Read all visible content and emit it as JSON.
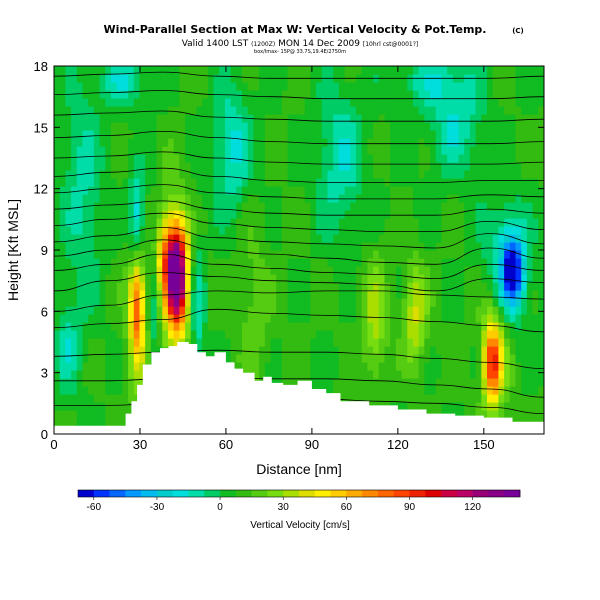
{
  "chart_data": {
    "type": "heatmap",
    "title_main": "Wind-Parallel Section at Max W: Vertical Velocity & Pot.Temp.",
    "title_mark": "(C)",
    "subtitle_valid": "Valid 1400 LST",
    "subtitle_utc": "(1200Z)",
    "subtitle_date": "MON 14 Dec 2009",
    "subtitle_run": "[10hrl cst@0001?]",
    "subtitle_small": "box/Imax- 15P@ 33.7S,19.4E/2750m",
    "xlabel": "Distance [nm]",
    "ylabel": "Height [Kft MSL]",
    "xlim": [
      0,
      171
    ],
    "ylim": [
      0,
      18
    ],
    "x_ticks": [
      "0",
      "30",
      "60",
      "90",
      "120",
      "150"
    ],
    "x_tick_values": [
      0,
      30,
      60,
      90,
      120,
      150
    ],
    "y_ticks": [
      "0",
      "3",
      "6",
      "9",
      "12",
      "15",
      "18"
    ],
    "y_tick_values": [
      0,
      3,
      6,
      9,
      12,
      15,
      18
    ],
    "colorbar_label": "Vertical Velocity [cm/s]",
    "colorbar_ticks": [
      "-60",
      "-30",
      "0",
      "30",
      "60",
      "90",
      "120"
    ],
    "colorbar_tick_values": [
      -60,
      -30,
      0,
      30,
      60,
      90,
      120
    ],
    "colorbar_range": [
      -67.5,
      142.5
    ],
    "colorbar_step": 7.5,
    "colors": {
      "bins": [
        "#0000cc",
        "#0033ff",
        "#0066ff",
        "#0099ff",
        "#00bbee",
        "#00cccc",
        "#00dddd",
        "#00dda8",
        "#00cc66",
        "#11bb22",
        "#33bb11",
        "#55cc11",
        "#77dd11",
        "#aadd00",
        "#dddd00",
        "#ffee00",
        "#ffcc00",
        "#ffaa00",
        "#ff8800",
        "#ff6600",
        "#ff4400",
        "#ee2200",
        "#dd0000",
        "#cc0044",
        "#bb0066",
        "#990077",
        "#880088",
        "#770099"
      ],
      "field_base": "#2db82d",
      "terrain": "#ffffff",
      "contour": "#000000"
    },
    "terrain_height_kft": [
      0.4,
      0.4,
      0.4,
      1.0,
      1.6,
      2.4,
      3.4,
      4.0,
      4.2,
      4.3,
      4.5,
      4.4,
      4.0,
      3.8,
      4.0,
      3.5,
      3.2,
      3.0,
      2.6,
      2.8,
      2.5,
      2.4,
      2.6,
      2.2,
      2.0,
      1.6,
      1.4,
      1.2,
      1.0,
      0.9,
      0.8,
      0.6,
      0.6
    ],
    "terrain_x_nm": [
      0,
      20,
      22,
      25,
      27,
      29,
      31,
      34,
      37,
      40,
      43,
      47,
      50,
      53,
      56,
      60,
      63,
      66,
      70,
      73,
      76,
      80,
      85,
      90,
      95,
      100,
      110,
      120,
      130,
      140,
      150,
      160,
      171
    ],
    "cells": [
      {
        "name": "updraft-main-core",
        "x": 43,
        "y": 7.6,
        "sx": 2.2,
        "sy": 1.6,
        "w": 105
      },
      {
        "name": "updraft-main-mid",
        "x": 40,
        "y": 8.6,
        "sx": 3.5,
        "sy": 1.5,
        "w": 50
      },
      {
        "name": "updraft-main-outer",
        "x": 42,
        "y": 7.2,
        "sx": 5.5,
        "sy": 3.0,
        "w": 30
      },
      {
        "name": "updraft-left",
        "x": 29,
        "y": 6.2,
        "sx": 1.6,
        "sy": 1.6,
        "w": 55
      },
      {
        "name": "updraft-left-outer",
        "x": 29,
        "y": 5.5,
        "sx": 3.0,
        "sy": 3.0,
        "w": 22
      },
      {
        "name": "updraft-right",
        "x": 153,
        "y": 3.5,
        "sx": 2.0,
        "sy": 1.3,
        "w": 70
      },
      {
        "name": "updraft-right-outer",
        "x": 154,
        "y": 4.2,
        "sx": 4.0,
        "sy": 2.4,
        "w": 25
      },
      {
        "name": "updraft-mid-a",
        "x": 112,
        "y": 5.5,
        "sx": 3.0,
        "sy": 2.2,
        "w": 25
      },
      {
        "name": "updraft-mid-b",
        "x": 126,
        "y": 5.8,
        "sx": 3.0,
        "sy": 1.8,
        "w": 30
      },
      {
        "name": "updraft-mid-c",
        "x": 70,
        "y": 6.0,
        "sx": 4.0,
        "sy": 3.0,
        "w": 12
      },
      {
        "name": "downdraft-right-core",
        "x": 160,
        "y": 8.0,
        "sx": 2.5,
        "sy": 1.1,
        "w": -65
      },
      {
        "name": "downdraft-right-outer",
        "x": 158,
        "y": 8.2,
        "sx": 5.5,
        "sy": 2.2,
        "w": -30
      },
      {
        "name": "downdraft-left",
        "x": 29,
        "y": 10.5,
        "sx": 2.0,
        "sy": 1.6,
        "w": -35
      },
      {
        "name": "downdraft-left-b",
        "x": 35,
        "y": 6.8,
        "sx": 1.8,
        "sy": 2.8,
        "w": -30
      },
      {
        "name": "downdraft-mid",
        "x": 50,
        "y": 6.0,
        "sx": 2.0,
        "sy": 3.0,
        "w": -28
      },
      {
        "name": "downdraft-upper-a",
        "x": 62,
        "y": 14.0,
        "sx": 5.0,
        "sy": 2.2,
        "w": -25
      },
      {
        "name": "downdraft-upper-b",
        "x": 100,
        "y": 13.5,
        "sx": 6.0,
        "sy": 2.5,
        "w": -22
      },
      {
        "name": "downdraft-upper-c",
        "x": 140,
        "y": 15.5,
        "sx": 7.0,
        "sy": 2.0,
        "w": -22
      },
      {
        "name": "downdraft-upper-d",
        "x": 10,
        "y": 12.0,
        "sx": 5.0,
        "sy": 4.0,
        "w": -18
      },
      {
        "name": "downdraft-low-a",
        "x": 5,
        "y": 4.2,
        "sx": 3.0,
        "sy": 1.6,
        "w": -18
      },
      {
        "name": "downdraft-top-a",
        "x": 25,
        "y": 17.3,
        "sx": 6.0,
        "sy": 0.8,
        "w": -22
      },
      {
        "name": "downdraft-top-b",
        "x": 130,
        "y": 17.3,
        "sx": 8.0,
        "sy": 0.8,
        "w": -15
      }
    ],
    "contours": [
      {
        "label": "",
        "y": [
          1.4,
          1.4,
          1.5,
          1.6,
          1.6,
          1.7,
          1.6,
          1.5,
          1.3,
          1.0
        ]
      },
      {
        "label": "",
        "y": [
          2.6,
          2.6,
          2.7,
          2.8,
          2.7,
          2.7,
          2.6,
          2.4,
          2.2,
          1.8
        ]
      },
      {
        "label": "",
        "y": [
          3.8,
          3.9,
          4.0,
          4.1,
          4.0,
          4.0,
          3.9,
          3.7,
          3.5,
          3.2
        ]
      },
      {
        "label": "",
        "y": [
          5.2,
          5.4,
          5.6,
          6.1,
          5.9,
          5.8,
          5.7,
          5.5,
          5.3,
          5.0
        ]
      },
      {
        "label": "",
        "y": [
          6.0,
          6.3,
          6.8,
          7.0,
          6.9,
          7.0,
          7.0,
          6.8,
          6.7,
          6.6
        ]
      },
      {
        "label": "",
        "y": [
          7.0,
          7.5,
          7.9,
          7.7,
          7.5,
          7.4,
          7.3,
          7.0,
          7.6,
          7.4
        ]
      },
      {
        "label": "",
        "y": [
          8.0,
          8.3,
          8.8,
          8.3,
          8.1,
          7.9,
          7.8,
          7.6,
          8.3,
          8.0
        ]
      },
      {
        "label": "",
        "y": [
          8.7,
          9.0,
          9.5,
          9.0,
          8.8,
          8.6,
          8.4,
          8.3,
          9.1,
          8.6
        ]
      },
      {
        "label": "",
        "y": [
          9.4,
          9.7,
          10.1,
          9.6,
          9.4,
          9.3,
          9.2,
          9.1,
          9.8,
          9.3
        ]
      },
      {
        "label": "",
        "y": [
          10.2,
          10.5,
          10.8,
          10.3,
          10.1,
          10.0,
          9.9,
          9.9,
          10.4,
          10.0
        ]
      },
      {
        "label": "",
        "y": [
          11.0,
          11.2,
          11.4,
          11.0,
          10.8,
          10.7,
          10.7,
          10.7,
          11.0,
          10.8
        ]
      },
      {
        "label": "",
        "y": [
          11.8,
          12.0,
          12.2,
          11.8,
          11.6,
          11.5,
          11.5,
          11.5,
          11.7,
          11.6
        ]
      },
      {
        "label": "",
        "y": [
          12.6,
          12.8,
          13.0,
          12.6,
          12.4,
          12.3,
          12.3,
          12.3,
          12.4,
          12.4
        ]
      },
      {
        "label": "",
        "y": [
          13.5,
          13.6,
          13.8,
          13.5,
          13.3,
          13.2,
          13.2,
          13.2,
          13.2,
          13.3
        ]
      },
      {
        "label": "",
        "y": [
          14.5,
          14.6,
          14.8,
          14.5,
          14.3,
          14.2,
          14.2,
          14.2,
          14.2,
          14.3
        ]
      },
      {
        "label": "",
        "y": [
          15.6,
          15.7,
          15.8,
          15.5,
          15.4,
          15.3,
          15.3,
          15.3,
          15.3,
          15.4
        ]
      },
      {
        "label": "",
        "y": [
          16.6,
          16.7,
          16.8,
          16.6,
          16.5,
          16.4,
          16.4,
          16.4,
          16.4,
          16.5
        ]
      },
      {
        "label": "",
        "y": [
          17.5,
          17.6,
          17.7,
          17.5,
          17.4,
          17.4,
          17.4,
          17.4,
          17.4,
          17.5
        ]
      }
    ],
    "contour_x_nm": [
      0,
      19,
      38,
      57,
      76,
      95,
      114,
      133,
      152,
      171
    ]
  }
}
